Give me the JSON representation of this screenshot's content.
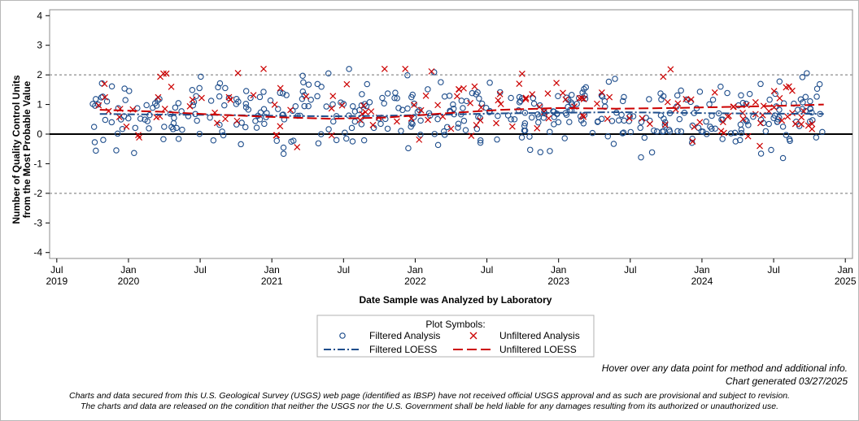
{
  "chart_data": {
    "type": "scatter",
    "ylabel_line1": "Number of Quality Control Units",
    "ylabel_line2": "from the Most Probable Value",
    "xlabel": "Date Sample was Analyzed by Laboratory",
    "ylim": [
      -4.2,
      4.2
    ],
    "yticks": [
      "4",
      "3",
      "2",
      "1",
      "0",
      "-1",
      "-2",
      "-3",
      "-4"
    ],
    "xlim": [
      2019.45,
      2025.05
    ],
    "xticks": [
      {
        "pos": 2019.5,
        "month": "Jul",
        "year": "2019"
      },
      {
        "pos": 2020.0,
        "month": "Jan",
        "year": "2020"
      },
      {
        "pos": 2020.5,
        "month": "Jul",
        "year": ""
      },
      {
        "pos": 2021.0,
        "month": "Jan",
        "year": "2021"
      },
      {
        "pos": 2021.5,
        "month": "Jul",
        "year": ""
      },
      {
        "pos": 2022.0,
        "month": "Jan",
        "year": "2022"
      },
      {
        "pos": 2022.5,
        "month": "Jul",
        "year": ""
      },
      {
        "pos": 2023.0,
        "month": "Jan",
        "year": "2023"
      },
      {
        "pos": 2023.5,
        "month": "Jul",
        "year": ""
      },
      {
        "pos": 2024.0,
        "month": "Jan",
        "year": "2024"
      },
      {
        "pos": 2024.5,
        "month": "Jul",
        "year": ""
      },
      {
        "pos": 2025.0,
        "month": "Jan",
        "year": "2025"
      }
    ],
    "reference_lines": [
      {
        "y": 2,
        "style": "dotted"
      },
      {
        "y": -2,
        "style": "dotted"
      },
      {
        "y": 0,
        "style": "solid"
      }
    ],
    "series": [
      {
        "name": "Filtered Analysis",
        "marker": "circle",
        "color": "#1f4e8c",
        "x_range": [
          2019.75,
          2024.85
        ],
        "y_center": 0.7,
        "y_spread": 0.6,
        "count": 430
      },
      {
        "name": "Unfiltered Analysis",
        "marker": "x",
        "color": "#cc0000",
        "x_range": [
          2019.75,
          2024.85
        ],
        "y_center": 0.8,
        "y_spread": 0.6,
        "count": 150
      },
      {
        "name": "Filtered LOESS",
        "style": "dash-dot",
        "color": "#1f4e8c",
        "x": [
          2019.8,
          2020.2,
          2020.6,
          2021.0,
          2021.4,
          2021.8,
          2022.2,
          2022.6,
          2023.0,
          2023.4,
          2023.8,
          2024.2,
          2024.6,
          2024.85
        ],
        "y": [
          0.68,
          0.66,
          0.65,
          0.62,
          0.6,
          0.62,
          0.66,
          0.7,
          0.72,
          0.74,
          0.72,
          0.7,
          0.69,
          0.68
        ]
      },
      {
        "name": "Unfiltered LOESS",
        "style": "long-dash",
        "color": "#cc0000",
        "x": [
          2019.8,
          2020.2,
          2020.6,
          2021.0,
          2021.4,
          2021.8,
          2022.2,
          2022.6,
          2023.0,
          2023.4,
          2023.8,
          2024.2,
          2024.6,
          2024.85
        ],
        "y": [
          0.82,
          0.76,
          0.66,
          0.58,
          0.52,
          0.56,
          0.7,
          0.82,
          0.88,
          0.86,
          0.88,
          0.92,
          0.96,
          1.0
        ]
      }
    ],
    "legend": {
      "title": "Plot Symbols:",
      "items": [
        "Filtered Analysis",
        "Unfiltered Analysis",
        "Filtered LOESS",
        "Unfiltered LOESS"
      ],
      "placement": "bottom-center"
    }
  },
  "footer": {
    "hover_note": "Hover over any data point for method and additional info.",
    "generated": "Chart generated 03/27/2025",
    "disclaimer_1": "Charts and data secured from this U.S. Geological Survey (USGS) web page (identified as IBSP) have not received official USGS approval and as such are provisional and subject to revision.",
    "disclaimer_2": "The charts and data are released on the condition that neither the USGS nor the U.S. Government shall be held liable for any damages resulting from its authorized or unauthorized use."
  }
}
